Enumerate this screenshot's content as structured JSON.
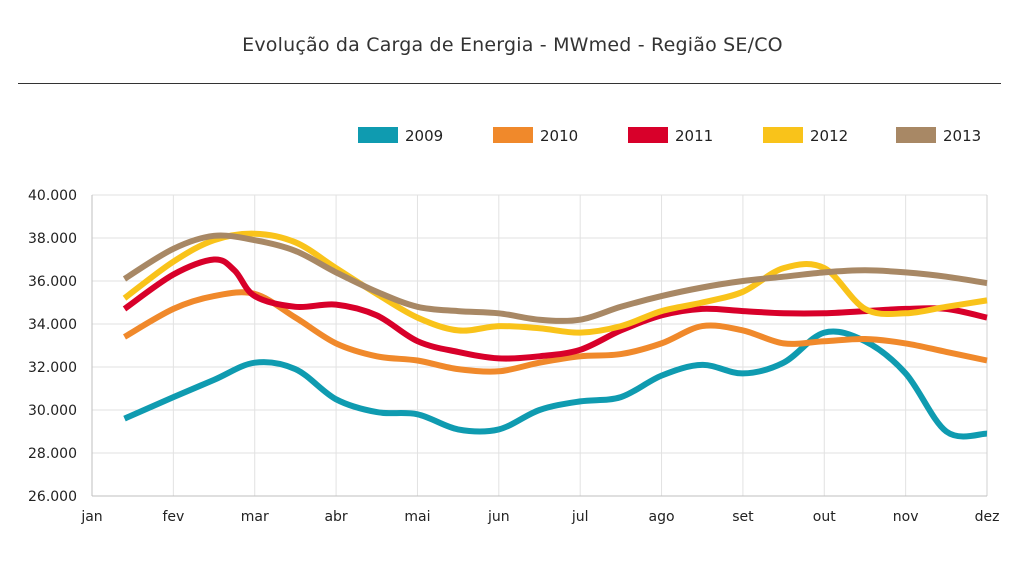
{
  "header": {
    "title": "Evolução da Carga de Energia - MWmed - Região SE/CO"
  },
  "chart_data": {
    "type": "line",
    "title": "Evolução da Carga de Energia - MWmed - Região SE/CO",
    "xlabel": "",
    "ylabel": "",
    "categories": [
      "jan",
      "fev",
      "mar",
      "abr",
      "mai",
      "jun",
      "jul",
      "ago",
      "set",
      "out",
      "nov",
      "dez"
    ],
    "y_ticks": [
      "26.000",
      "28.000",
      "30.000",
      "32.000",
      "34.000",
      "36.000",
      "38.000",
      "40.000"
    ],
    "ylim": [
      26000,
      40000
    ],
    "grid": true,
    "legend_position": "top-right",
    "series": [
      {
        "name": "2009",
        "color": "#0f9bb0",
        "x": [
          0.4,
          1.0,
          1.5,
          2.0,
          2.5,
          3.0,
          3.5,
          4.0,
          4.5,
          5.0,
          5.5,
          6.0,
          6.5,
          7.0,
          7.5,
          8.0,
          8.5,
          9.0,
          9.5,
          10.0,
          10.5,
          11.0
        ],
        "values": [
          29600,
          30600,
          31400,
          32200,
          31900,
          30500,
          29900,
          29800,
          29100,
          29100,
          30000,
          30400,
          30600,
          31600,
          32100,
          31700,
          32200,
          33600,
          33200,
          31700,
          29000,
          28900
        ]
      },
      {
        "name": "2010",
        "color": "#f0892b",
        "x": [
          0.4,
          1.0,
          1.5,
          2.0,
          2.5,
          3.0,
          3.5,
          4.0,
          4.5,
          5.0,
          5.5,
          6.0,
          6.5,
          7.0,
          7.5,
          8.0,
          8.5,
          9.0,
          9.5,
          10.0,
          10.5,
          11.0
        ],
        "values": [
          33400,
          34700,
          35300,
          35400,
          34300,
          33100,
          32500,
          32300,
          31900,
          31800,
          32200,
          32500,
          32600,
          33100,
          33900,
          33700,
          33100,
          33200,
          33300,
          33100,
          32700,
          32300
        ]
      },
      {
        "name": "2011",
        "color": "#d8002a",
        "x": [
          0.4,
          1.0,
          1.5,
          1.75,
          2.0,
          2.5,
          3.0,
          3.5,
          4.0,
          4.5,
          5.0,
          5.5,
          6.0,
          6.5,
          7.0,
          7.5,
          8.0,
          8.5,
          9.0,
          9.5,
          10.0,
          10.5,
          11.0
        ],
        "values": [
          34700,
          36300,
          37000,
          36500,
          35300,
          34800,
          34900,
          34400,
          33200,
          32700,
          32400,
          32500,
          32800,
          33700,
          34400,
          34700,
          34600,
          34500,
          34500,
          34600,
          34700,
          34700,
          34300
        ]
      },
      {
        "name": "2012",
        "color": "#f9c31a",
        "x": [
          0.4,
          1.0,
          1.5,
          2.0,
          2.5,
          3.0,
          3.5,
          4.0,
          4.5,
          5.0,
          5.5,
          6.0,
          6.5,
          7.0,
          7.5,
          8.0,
          8.5,
          9.0,
          9.5,
          10.0,
          10.5,
          11.0
        ],
        "values": [
          35200,
          36900,
          37900,
          38200,
          37800,
          36600,
          35400,
          34300,
          33700,
          33900,
          33800,
          33600,
          33900,
          34600,
          35000,
          35500,
          36600,
          36600,
          34700,
          34500,
          34800,
          35100
        ]
      },
      {
        "name": "2013",
        "color": "#a88865",
        "x": [
          0.4,
          1.0,
          1.5,
          2.0,
          2.5,
          3.0,
          3.5,
          4.0,
          4.5,
          5.0,
          5.5,
          6.0,
          6.5,
          7.0,
          7.5,
          8.0,
          8.5,
          9.0,
          9.5,
          10.0,
          10.5,
          11.0
        ],
        "values": [
          36100,
          37500,
          38100,
          37900,
          37400,
          36400,
          35500,
          34800,
          34600,
          34500,
          34200,
          34200,
          34800,
          35300,
          35700,
          36000,
          36200,
          36400,
          36500,
          36400,
          36200,
          35900
        ]
      }
    ]
  }
}
